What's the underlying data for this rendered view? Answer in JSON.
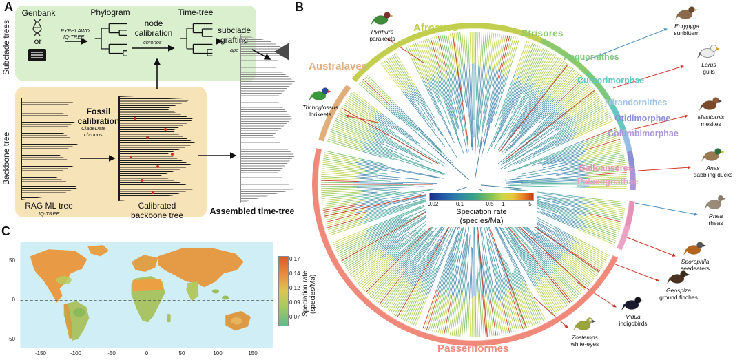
{
  "panelA": {
    "label": "A",
    "side_subclade": "Subclade trees",
    "side_backbone": "Backbone tree",
    "genbank": "Genbank",
    "or_text": "or",
    "pyphlawd": "PYPHLAWD",
    "iqtree_subclade": "IQ-TREE",
    "phylogram": "Phylogram",
    "node_cal_1": "node",
    "node_cal_2": "calibration",
    "chronos_subclade": "chronos",
    "timetree": "Time-tree",
    "graft_1": "subclade",
    "graft_2": "grafting",
    "ape": "ape",
    "fossil_calibration": "Fossil calibration",
    "cladedate": "CladeDate",
    "chronos_backbone": "chronos",
    "rag_ml": "RAG ML tree",
    "iqtree_backbone": "IQ-TREE",
    "calibrated_1": "Calibrated",
    "calibrated_2": "backbone tree",
    "assembled": "Assembled time-tree"
  },
  "panelB": {
    "label": "B",
    "clades": [
      {
        "name": "Australaves",
        "color": "#e2b07e"
      },
      {
        "name": "Afroaves",
        "color": "#c2ce4d"
      },
      {
        "name": "Strisores",
        "color": "#8cc96d"
      },
      {
        "name": "Aequornithes",
        "color": "#7cc87d"
      },
      {
        "name": "Cursorimorphae",
        "color": "#5fc8c0"
      },
      {
        "name": "Mirandornithes",
        "color": "#9ec2e8"
      },
      {
        "name": "Otidimorphae",
        "color": "#8a8fd6"
      },
      {
        "name": "Columbimorphae",
        "color": "#ab96d8"
      },
      {
        "name": "Galloanseres",
        "color": "#e891b8"
      },
      {
        "name": "Palaeognathae",
        "color": "#eca3c3"
      },
      {
        "name": "Passeriformes",
        "color": "#f0897a"
      }
    ],
    "birds": [
      {
        "genus": "Pyrrhura",
        "common": "parakeets"
      },
      {
        "genus": "Eurypyga",
        "common": "sunbittern"
      },
      {
        "genus": "Larus",
        "common": "gulls"
      },
      {
        "genus": "Mesitornis",
        "common": "mesites"
      },
      {
        "genus": "Anas",
        "common": "dabbling ducks"
      },
      {
        "genus": "Rhea",
        "common": "rheas"
      },
      {
        "genus": "Sporophila",
        "common": "seedeaters"
      },
      {
        "genus": "Geospiza",
        "common": "ground finches"
      },
      {
        "genus": "Vidua",
        "common": "indigobirds"
      },
      {
        "genus": "Zosterops",
        "common": "white-eyes"
      },
      {
        "genus": "Trichoglossus",
        "common": "lorikeets"
      }
    ],
    "legend": {
      "ticks": [
        "0.02",
        "0.1",
        "0.5",
        "1",
        "5"
      ],
      "title": "Speciation rate",
      "subtitle": "(species/Ma)"
    }
  },
  "panelC": {
    "label": "C",
    "colorbar_ticks": [
      "0.17",
      "0.14",
      "0.12",
      "0.09",
      "0.07"
    ],
    "colorbar_title": "Speciation rate",
    "colorbar_subtitle": "(species/Ma)",
    "x_ticks": [
      "-150",
      "-100",
      "-50",
      "0",
      "50",
      "100",
      "150"
    ],
    "y_ticks": [
      "50",
      "0",
      "-50"
    ]
  }
}
